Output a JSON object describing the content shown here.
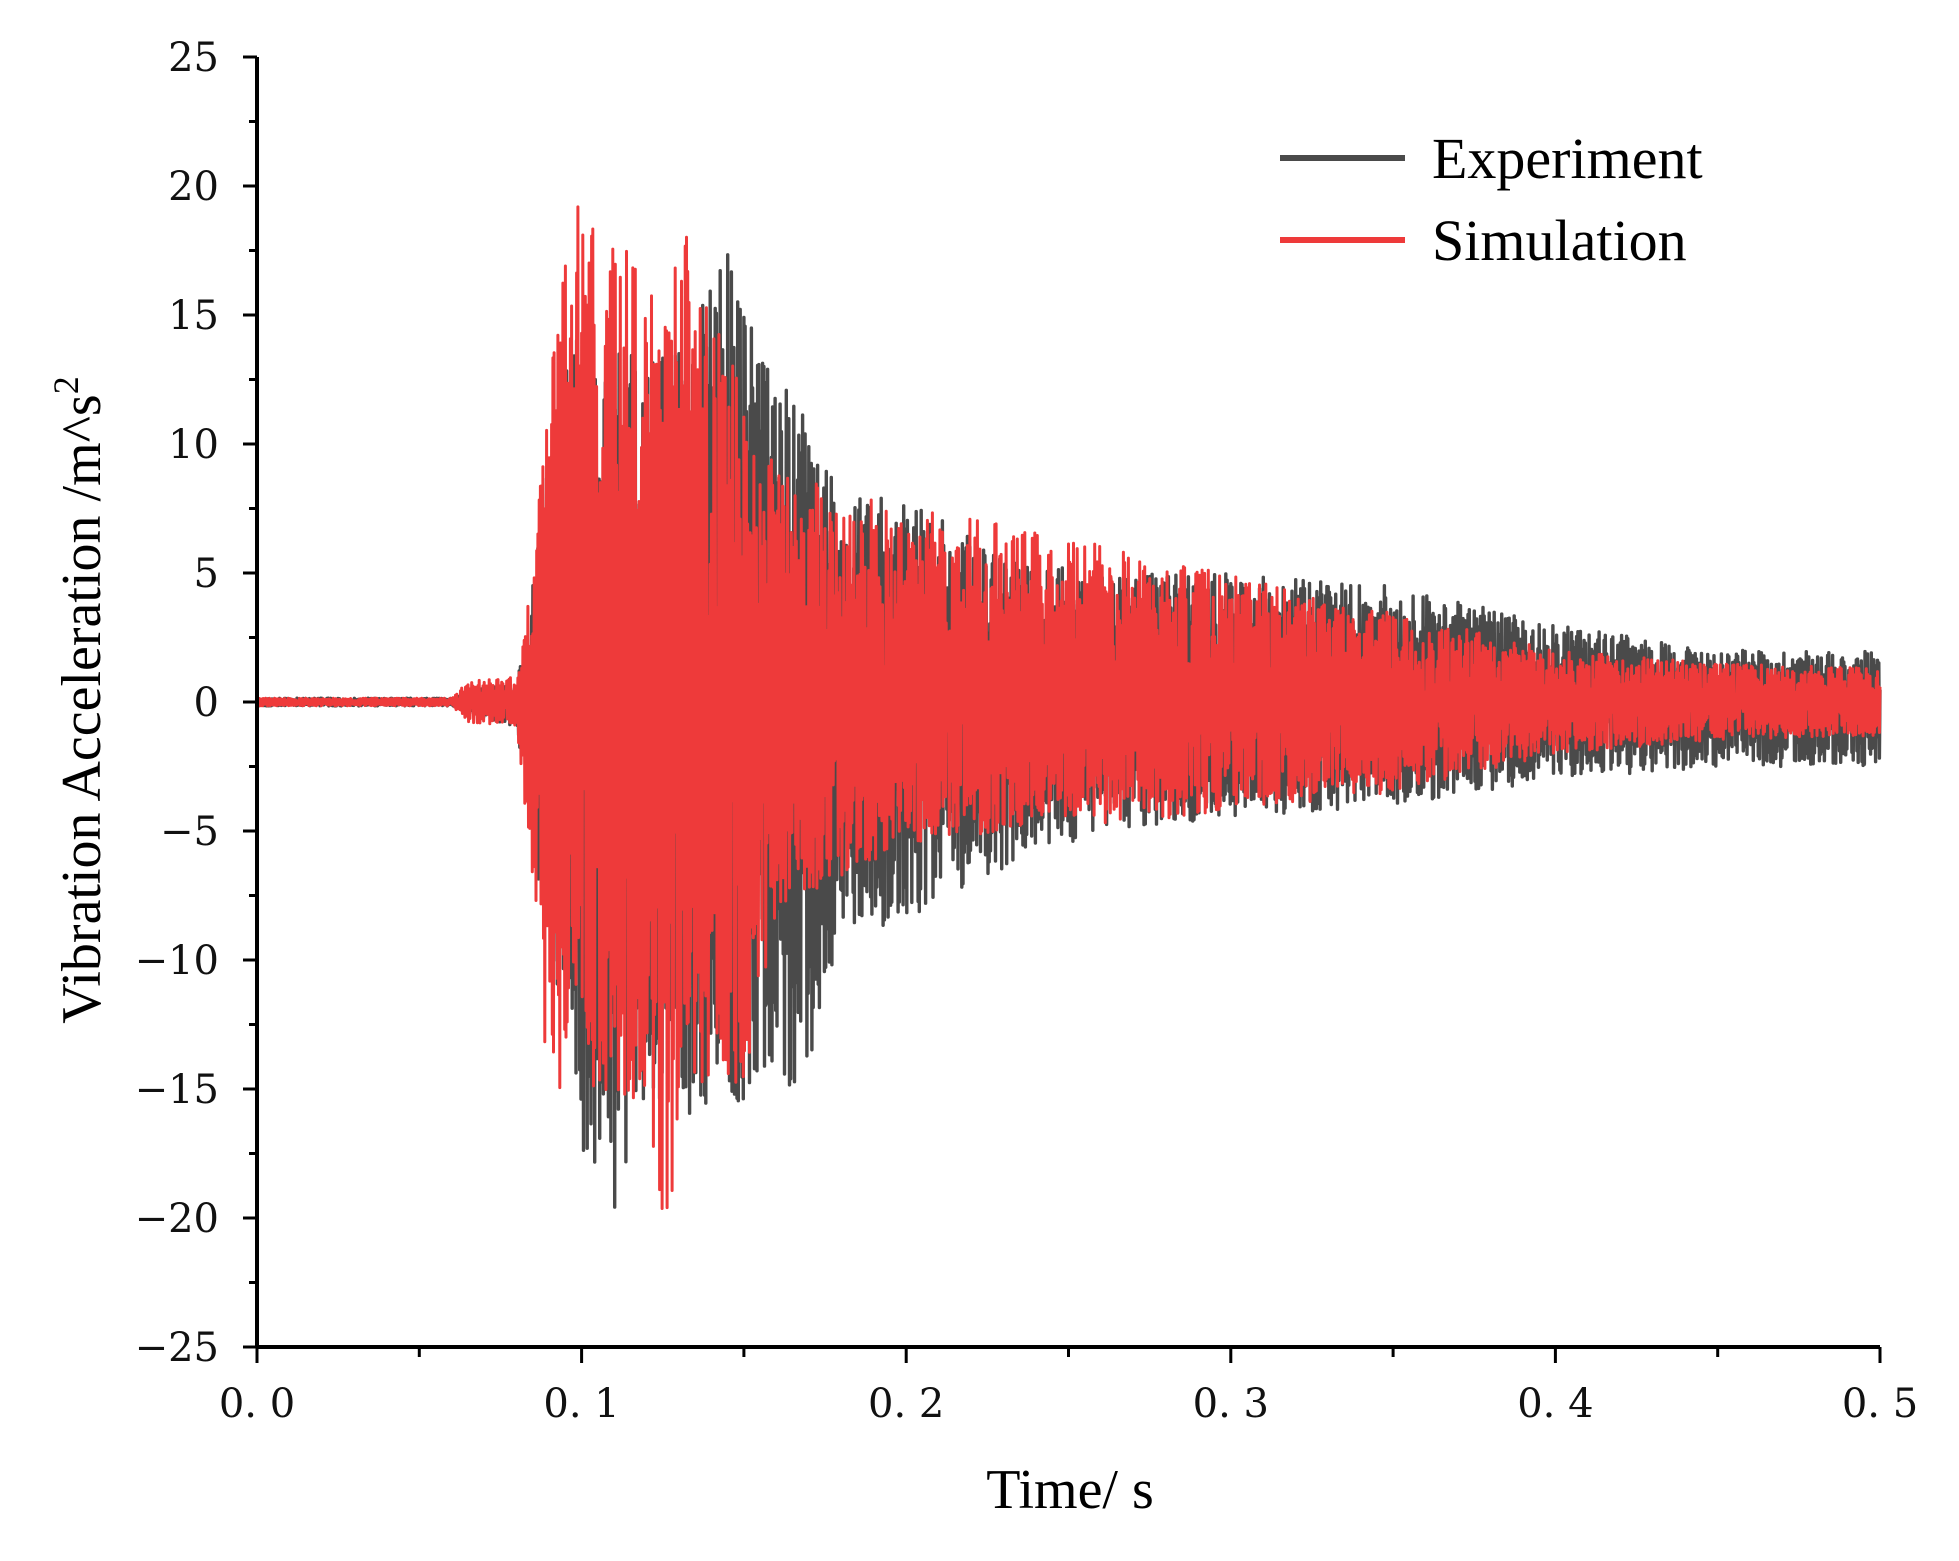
{
  "chart_data": {
    "type": "line",
    "title": "",
    "xlabel": "Time/ s",
    "ylabel_main": "Vibration Acceleration /m^s",
    "ylabel_sup": "2",
    "xlim": [
      0,
      0.5
    ],
    "ylim": [
      -25,
      25
    ],
    "x_ticks": [
      0,
      0.1,
      0.2,
      0.3,
      0.4,
      0.5
    ],
    "x_tick_labels": [
      "0. 0",
      "0. 1",
      "0. 2",
      "0. 3",
      "0. 4",
      "0. 5"
    ],
    "y_ticks": [
      25,
      20,
      15,
      10,
      5,
      0,
      -5,
      -10,
      -15,
      -20,
      -25
    ],
    "y_tick_labels": [
      "25",
      "20",
      "15",
      "10",
      "5",
      "0",
      "−5",
      "−10",
      "−15",
      "−20",
      "−25"
    ],
    "grid": false,
    "legend_position": "top-right",
    "series": [
      {
        "name": "Experiment",
        "color": "#4a4a4a",
        "envelope": [
          {
            "t": 0.0,
            "pos": 0.15,
            "neg": -0.15
          },
          {
            "t": 0.06,
            "pos": 0.15,
            "neg": -0.15
          },
          {
            "t": 0.07,
            "pos": 0.6,
            "neg": -0.6
          },
          {
            "t": 0.08,
            "pos": 0.6,
            "neg": -1.0
          },
          {
            "t": 0.085,
            "pos": 5.0,
            "neg": -6.0
          },
          {
            "t": 0.095,
            "pos": 14.0,
            "neg": -13.0
          },
          {
            "t": 0.1,
            "pos": 14.5,
            "neg": -17.7
          },
          {
            "t": 0.11,
            "pos": 14.0,
            "neg": -20.4
          },
          {
            "t": 0.12,
            "pos": 13.0,
            "neg": -15.0
          },
          {
            "t": 0.13,
            "pos": 14.0,
            "neg": -16.0
          },
          {
            "t": 0.145,
            "pos": 17.4,
            "neg": -16.3
          },
          {
            "t": 0.16,
            "pos": 12.8,
            "neg": -14.0
          },
          {
            "t": 0.166,
            "pos": 12.0,
            "neg": -16.2
          },
          {
            "t": 0.18,
            "pos": 8.0,
            "neg": -9.0
          },
          {
            "t": 0.2,
            "pos": 8.0,
            "neg": -8.5
          },
          {
            "t": 0.23,
            "pos": 5.5,
            "neg": -6.5
          },
          {
            "t": 0.26,
            "pos": 5.0,
            "neg": -5.0
          },
          {
            "t": 0.3,
            "pos": 5.0,
            "neg": -4.5
          },
          {
            "t": 0.35,
            "pos": 4.5,
            "neg": -4.0
          },
          {
            "t": 0.4,
            "pos": 3.0,
            "neg": -3.0
          },
          {
            "t": 0.45,
            "pos": 2.0,
            "neg": -2.5
          },
          {
            "t": 0.5,
            "pos": 2.0,
            "neg": -2.5
          }
        ]
      },
      {
        "name": "Simulation",
        "color": "#ee3a3a",
        "envelope": [
          {
            "t": 0.0,
            "pos": 0.15,
            "neg": -0.15
          },
          {
            "t": 0.06,
            "pos": 0.15,
            "neg": -0.15
          },
          {
            "t": 0.065,
            "pos": 0.8,
            "neg": -0.8
          },
          {
            "t": 0.08,
            "pos": 1.0,
            "neg": -1.0
          },
          {
            "t": 0.085,
            "pos": 5.0,
            "neg": -7.0
          },
          {
            "t": 0.09,
            "pos": 13.7,
            "neg": -16.0
          },
          {
            "t": 0.1,
            "pos": 20.1,
            "neg": -14.8
          },
          {
            "t": 0.118,
            "pos": 16.8,
            "neg": -17.0
          },
          {
            "t": 0.126,
            "pos": 15.0,
            "neg": -21.2
          },
          {
            "t": 0.132,
            "pos": 19.0,
            "neg": -15.5
          },
          {
            "t": 0.15,
            "pos": 12.0,
            "neg": -15.0
          },
          {
            "t": 0.16,
            "pos": 9.0,
            "neg": -8.0
          },
          {
            "t": 0.2,
            "pos": 7.5,
            "neg": -5.5
          },
          {
            "t": 0.23,
            "pos": 7.0,
            "neg": -5.0
          },
          {
            "t": 0.28,
            "pos": 5.5,
            "neg": -4.5
          },
          {
            "t": 0.35,
            "pos": 3.5,
            "neg": -3.5
          },
          {
            "t": 0.4,
            "pos": 2.0,
            "neg": -2.0
          },
          {
            "t": 0.45,
            "pos": 1.5,
            "neg": -1.5
          },
          {
            "t": 0.5,
            "pos": 1.3,
            "neg": -1.3
          }
        ]
      }
    ]
  }
}
